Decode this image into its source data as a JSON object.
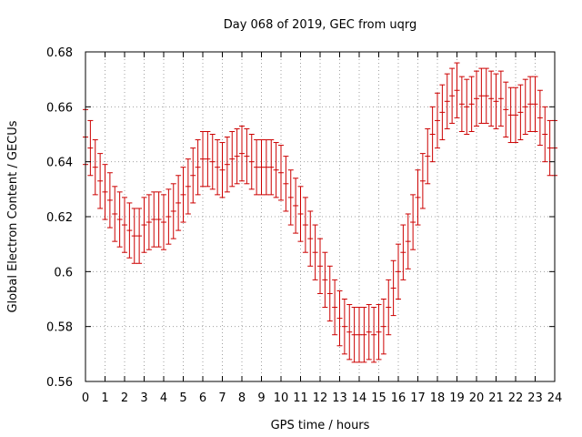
{
  "chart_data": {
    "type": "errorbar",
    "title": "Day 068 of 2019, GEC from uqrg",
    "xlabel": "GPS time / hours",
    "ylabel": "Global Electron Content / GECUs",
    "xlim": [
      0,
      24
    ],
    "ylim": [
      0.56,
      0.68
    ],
    "xticks": [
      "0",
      "1",
      "2",
      "3",
      "4",
      "5",
      "6",
      "7",
      "8",
      "9",
      "10",
      "11",
      "12",
      "13",
      "14",
      "15",
      "16",
      "17",
      "18",
      "19",
      "20",
      "21",
      "22",
      "23",
      "24"
    ],
    "yticks": [
      "0.56",
      "0.58",
      "0.6",
      "0.62",
      "0.64",
      "0.66",
      "0.68"
    ],
    "grid": true,
    "series": [
      {
        "name": "GEC",
        "color": "#cc0000",
        "error": 0.01,
        "x": [
          0.0,
          0.25,
          0.5,
          0.75,
          1.0,
          1.25,
          1.5,
          1.75,
          2.0,
          2.25,
          2.5,
          2.75,
          3.0,
          3.25,
          3.5,
          3.75,
          4.0,
          4.25,
          4.5,
          4.75,
          5.0,
          5.25,
          5.5,
          5.75,
          6.0,
          6.25,
          6.5,
          6.75,
          7.0,
          7.25,
          7.5,
          7.75,
          8.0,
          8.25,
          8.5,
          8.75,
          9.0,
          9.25,
          9.5,
          9.75,
          10.0,
          10.25,
          10.5,
          10.75,
          11.0,
          11.25,
          11.5,
          11.75,
          12.0,
          12.25,
          12.5,
          12.75,
          13.0,
          13.25,
          13.5,
          13.75,
          14.0,
          14.25,
          14.5,
          14.75,
          15.0,
          15.25,
          15.5,
          15.75,
          16.0,
          16.25,
          16.5,
          16.75,
          17.0,
          17.25,
          17.5,
          17.75,
          18.0,
          18.25,
          18.5,
          18.75,
          19.0,
          19.25,
          19.5,
          19.75,
          20.0,
          20.25,
          20.5,
          20.75,
          21.0,
          21.25,
          21.5,
          21.75,
          22.0,
          22.25,
          22.5,
          22.75,
          23.0,
          23.25,
          23.5,
          23.75,
          24.0
        ],
        "y": [
          0.649,
          0.645,
          0.638,
          0.633,
          0.629,
          0.626,
          0.621,
          0.619,
          0.617,
          0.615,
          0.613,
          0.613,
          0.617,
          0.618,
          0.619,
          0.619,
          0.618,
          0.62,
          0.622,
          0.625,
          0.628,
          0.631,
          0.635,
          0.638,
          0.641,
          0.641,
          0.64,
          0.638,
          0.637,
          0.639,
          0.641,
          0.642,
          0.643,
          0.642,
          0.64,
          0.638,
          0.638,
          0.638,
          0.638,
          0.637,
          0.636,
          0.632,
          0.627,
          0.624,
          0.621,
          0.617,
          0.612,
          0.607,
          0.602,
          0.597,
          0.592,
          0.587,
          0.583,
          0.58,
          0.578,
          0.577,
          0.577,
          0.577,
          0.578,
          0.577,
          0.578,
          0.58,
          0.587,
          0.594,
          0.6,
          0.607,
          0.611,
          0.618,
          0.627,
          0.633,
          0.642,
          0.65,
          0.655,
          0.658,
          0.662,
          0.664,
          0.666,
          0.661,
          0.66,
          0.661,
          0.663,
          0.664,
          0.664,
          0.663,
          0.662,
          0.663,
          0.659,
          0.657,
          0.657,
          0.658,
          0.66,
          0.661,
          0.661,
          0.656,
          0.65,
          0.645,
          0.645
        ]
      }
    ]
  }
}
